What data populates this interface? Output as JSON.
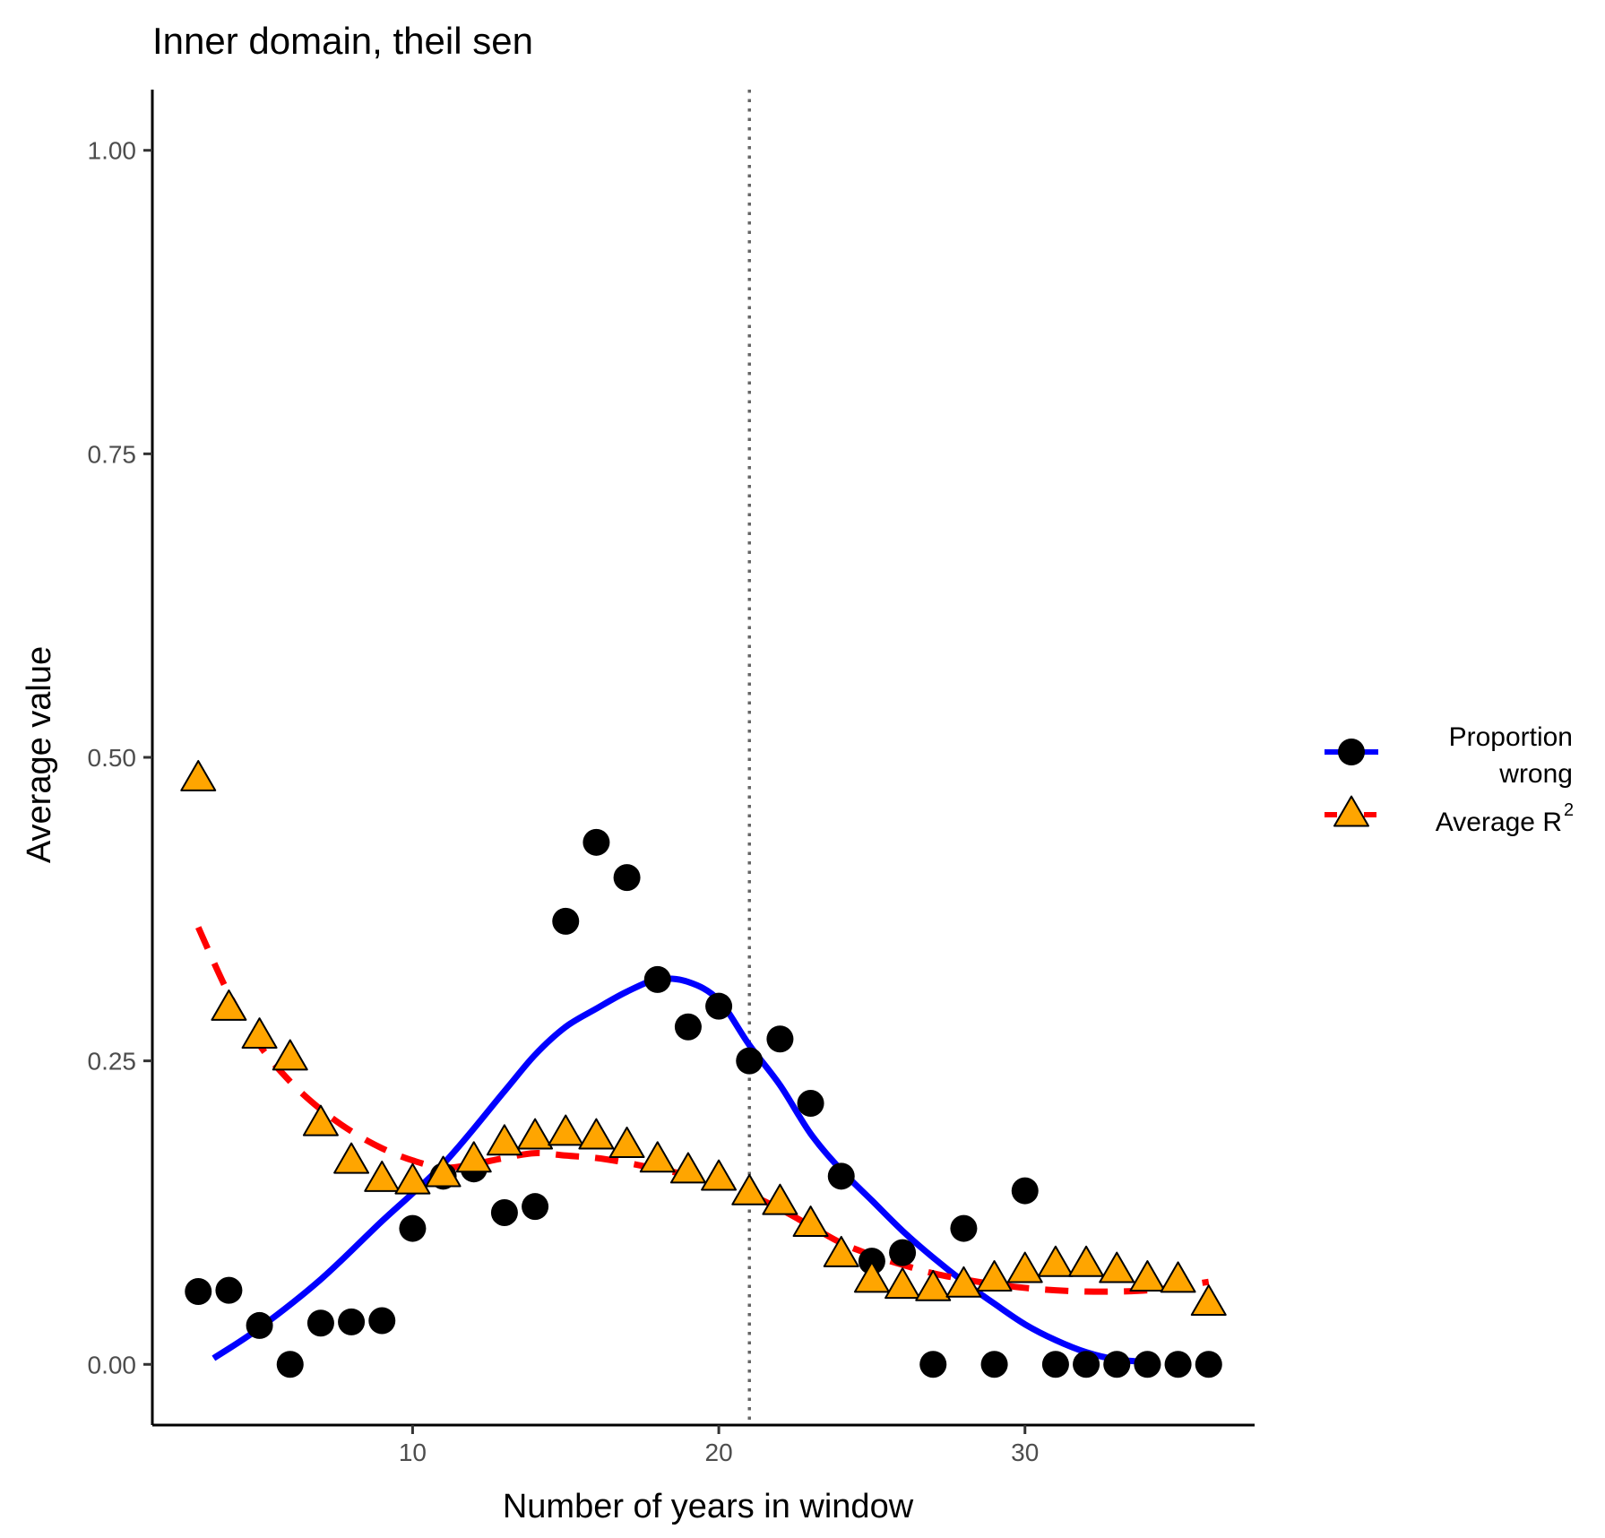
{
  "chart_data": {
    "type": "scatter",
    "title": "Inner domain, theil sen",
    "xlabel": "Number of years in window",
    "ylabel": "Average value",
    "xlim": [
      1.5,
      37.5
    ],
    "ylim": [
      -0.05,
      1.05
    ],
    "x_ticks": [
      10,
      20,
      30
    ],
    "x_tick_labels": [
      "10",
      "20",
      "30"
    ],
    "y_ticks": [
      0,
      0.25,
      0.5,
      0.75,
      1
    ],
    "y_tick_labels": [
      "0.00",
      "0.25",
      "0.50",
      "0.75",
      "1.00"
    ],
    "vline_x": 21,
    "grid": false,
    "legend_position": "right",
    "series": [
      {
        "name": "Proportion wrong",
        "legend_lines": [
          "Proportion",
          "wrong"
        ],
        "marker": "circle",
        "marker_color": "#000000",
        "line_color": "#0000ff",
        "line_style": "solid",
        "x": [
          3,
          4,
          5,
          6,
          7,
          8,
          9,
          10,
          11,
          12,
          13,
          14,
          15,
          16,
          17,
          18,
          19,
          20,
          21,
          22,
          23,
          24,
          25,
          26,
          27,
          28,
          29,
          30,
          31,
          32,
          33,
          34,
          35,
          36
        ],
        "y": [
          0.06,
          0.061,
          0.032,
          0.0,
          0.034,
          0.035,
          0.036,
          0.112,
          0.155,
          0.161,
          0.125,
          0.13,
          0.365,
          0.43,
          0.401,
          0.317,
          0.278,
          0.295,
          0.25,
          0.268,
          0.215,
          0.155,
          0.085,
          0.092,
          0.0,
          0.112,
          0.0,
          0.143,
          0.0,
          0.0,
          0.0,
          0.0,
          0.0,
          0.0
        ],
        "smooth_x": [
          3.5,
          5,
          7,
          9,
          11,
          13,
          14,
          15,
          16,
          17,
          18,
          19,
          20,
          21,
          22,
          23,
          24,
          25,
          26,
          27,
          28,
          29,
          30,
          31,
          32,
          33,
          34
        ],
        "smooth_y": [
          0.005,
          0.03,
          0.07,
          0.118,
          0.165,
          0.225,
          0.255,
          0.278,
          0.293,
          0.307,
          0.317,
          0.315,
          0.3,
          0.263,
          0.23,
          0.19,
          0.16,
          0.135,
          0.11,
          0.088,
          0.068,
          0.05,
          0.033,
          0.02,
          0.01,
          0.004,
          0.002
        ]
      },
      {
        "name": "Average R²",
        "legend_text": "Average R",
        "legend_superscript": "2",
        "marker": "triangle",
        "marker_color": "#ffa500",
        "line_color": "#ff0000",
        "line_style": "dashed",
        "x": [
          3,
          4,
          5,
          6,
          7,
          8,
          9,
          10,
          11,
          12,
          13,
          14,
          15,
          16,
          17,
          18,
          19,
          20,
          21,
          22,
          23,
          24,
          25,
          26,
          27,
          28,
          29,
          30,
          31,
          32,
          33,
          34,
          35,
          36
        ],
        "y": [
          0.482,
          0.293,
          0.27,
          0.252,
          0.198,
          0.167,
          0.152,
          0.15,
          0.156,
          0.168,
          0.182,
          0.187,
          0.19,
          0.187,
          0.18,
          0.168,
          0.159,
          0.153,
          0.141,
          0.133,
          0.115,
          0.09,
          0.069,
          0.064,
          0.062,
          0.065,
          0.07,
          0.077,
          0.082,
          0.082,
          0.077,
          0.07,
          0.069,
          0.05
        ],
        "smooth_x": [
          3,
          4,
          5,
          6,
          7,
          8,
          9,
          10,
          11,
          12,
          13,
          14,
          15,
          16,
          17,
          18,
          19,
          20,
          21,
          22,
          23,
          24,
          25,
          26,
          27,
          28,
          29,
          30,
          31,
          32,
          33,
          34,
          35,
          36
        ],
        "smooth_y": [
          0.36,
          0.305,
          0.263,
          0.233,
          0.21,
          0.192,
          0.178,
          0.168,
          0.162,
          0.165,
          0.17,
          0.174,
          0.172,
          0.17,
          0.166,
          0.161,
          0.156,
          0.15,
          0.14,
          0.128,
          0.114,
          0.1,
          0.09,
          0.082,
          0.075,
          0.07,
          0.066,
          0.063,
          0.061,
          0.06,
          0.06,
          0.061,
          0.064,
          0.068
        ]
      }
    ]
  }
}
